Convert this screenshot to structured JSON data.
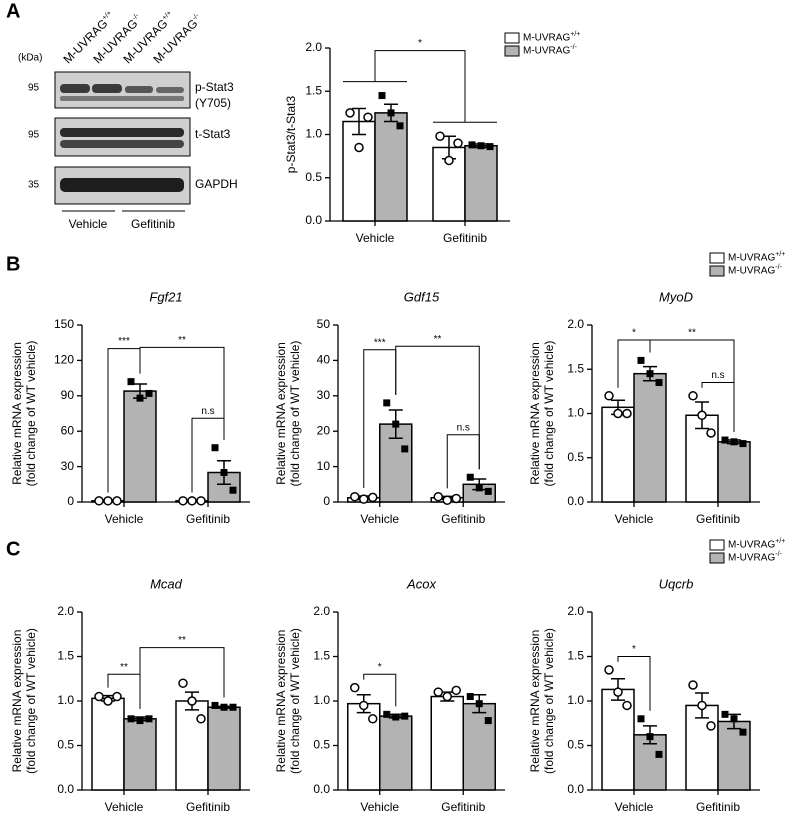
{
  "panels": [
    "A",
    "B",
    "C"
  ],
  "blot": {
    "kda_unit": "(kDa)",
    "lanes": [
      "M-UVRAG+/+",
      "M-UVRAG-/-",
      "M-UVRAG+/+",
      "M-UVRAG-/-"
    ],
    "rows": [
      {
        "kda": 95,
        "label": [
          "p-Stat3",
          "(Y705)"
        ]
      },
      {
        "kda": 95,
        "label": [
          "t-Stat3"
        ]
      },
      {
        "kda": 35,
        "label": [
          "GAPDH"
        ]
      }
    ],
    "groups": [
      "Vehicle",
      "Gefitinib"
    ]
  },
  "chart_data": [
    {
      "type": "bar",
      "ylabel": [
        "p-Stat3/t-Stat3"
      ],
      "categories": [
        "Vehicle",
        "Gefitinib"
      ],
      "ylim": [
        0,
        2
      ],
      "yticks": [
        {
          "value": 0,
          "label": "0.0"
        },
        {
          "value": 0.5,
          "label": "0.5"
        },
        {
          "value": 1,
          "label": "1.0"
        },
        {
          "value": 1.5,
          "label": "1.5"
        },
        {
          "value": 2,
          "label": "2.0"
        }
      ],
      "legend": "top-right",
      "series": [
        {
          "name": "M-UVRAG+/+",
          "color": "#ffffff",
          "values": [
            1.15,
            0.85
          ],
          "errors": [
            0.15,
            0.13
          ],
          "points": [
            [
              1.25,
              0.85,
              1.2
            ],
            [
              0.98,
              0.7,
              0.9
            ]
          ]
        },
        {
          "name": "M-UVRAG-/-",
          "color": "#b3b3b3",
          "values": [
            1.25,
            0.87
          ],
          "errors": [
            0.1,
            0.02
          ],
          "points": [
            [
              1.45,
              1.25,
              1.1
            ],
            [
              0.88,
              0.87,
              0.86
            ]
          ]
        }
      ],
      "significance": [
        {
          "label": "*",
          "from": [
            0
          ],
          "to": [
            1
          ],
          "y": 1.97
        }
      ]
    },
    {
      "type": "bar",
      "title": "Fgf21",
      "ylabel": [
        "Relative mRNA expression",
        "(fold change of WT vehicle)"
      ],
      "categories": [
        "Vehicle",
        "Gefitinib"
      ],
      "ylim": [
        0,
        150
      ],
      "yticks": [
        0,
        30,
        60,
        90,
        120,
        150
      ],
      "series": [
        {
          "name": "M-UVRAG+/+",
          "color": "#ffffff",
          "values": [
            1,
            1
          ],
          "errors": [
            0.3,
            0.3
          ],
          "points": [
            [
              1,
              1,
              1
            ],
            [
              1,
              1,
              1
            ]
          ]
        },
        {
          "name": "M-UVRAG-/-",
          "color": "#b3b3b3",
          "values": [
            94,
            25
          ],
          "errors": [
            6,
            10
          ],
          "points": [
            [
              102,
              88,
              92
            ],
            [
              46,
              25,
              10
            ]
          ]
        }
      ],
      "significance": [
        {
          "label": "***",
          "from": [
            0,
            0
          ],
          "to": [
            0,
            1
          ],
          "y": 130
        },
        {
          "label": "**",
          "from": [
            0,
            1
          ],
          "to": [
            1,
            1
          ],
          "y": 131
        },
        {
          "label": "n.s",
          "from": [
            1,
            0
          ],
          "to": [
            1,
            1
          ],
          "y": 71
        }
      ]
    },
    {
      "type": "bar",
      "title": "Gdf15",
      "ylabel": [
        "Relative mRNA expression",
        "(fold change of WT vehicle)"
      ],
      "categories": [
        "Vehicle",
        "Gefitinib"
      ],
      "ylim": [
        0,
        50
      ],
      "yticks": [
        0,
        10,
        20,
        30,
        40,
        50
      ],
      "series": [
        {
          "name": "M-UVRAG+/+",
          "color": "#ffffff",
          "values": [
            1.2,
            1.2
          ],
          "errors": [
            0.5,
            0.4
          ],
          "points": [
            [
              1.5,
              0.8,
              1.3
            ],
            [
              1.5,
              0.5,
              1
            ]
          ]
        },
        {
          "name": "M-UVRAG-/-",
          "color": "#b3b3b3",
          "values": [
            22,
            5
          ],
          "errors": [
            4,
            1.5
          ],
          "points": [
            [
              28,
              22,
              15
            ],
            [
              7,
              4,
              3
            ]
          ]
        }
      ],
      "significance": [
        {
          "label": "***",
          "from": [
            0,
            0
          ],
          "to": [
            0,
            1
          ],
          "y": 43
        },
        {
          "label": "**",
          "from": [
            0,
            1
          ],
          "to": [
            1,
            1
          ],
          "y": 44
        },
        {
          "label": "n.s",
          "from": [
            1,
            0
          ],
          "to": [
            1,
            1
          ],
          "y": 19
        }
      ]
    },
    {
      "type": "bar",
      "title": "MyoD",
      "ylabel": [
        "Relative mRNA expression",
        "(fold change of WT vehicle)"
      ],
      "categories": [
        "Vehicle",
        "Gefitinib"
      ],
      "ylim": [
        0,
        2
      ],
      "yticks": [
        {
          "value": 0,
          "label": "0.0"
        },
        {
          "value": 0.5,
          "label": "0.5"
        },
        {
          "value": 1,
          "label": "1.0"
        },
        {
          "value": 1.5,
          "label": "1.5"
        },
        {
          "value": 2,
          "label": "2.0"
        }
      ],
      "legend": "top-right",
      "series": [
        {
          "name": "M-UVRAG+/+",
          "color": "#ffffff",
          "values": [
            1.07,
            0.98
          ],
          "errors": [
            0.08,
            0.15
          ],
          "points": [
            [
              1.2,
              1,
              1
            ],
            [
              1.2,
              0.98,
              0.78
            ]
          ]
        },
        {
          "name": "M-UVRAG-/-",
          "color": "#b3b3b3",
          "values": [
            1.45,
            0.68
          ],
          "errors": [
            0.08,
            0.02
          ],
          "points": [
            [
              1.6,
              1.45,
              1.35
            ],
            [
              0.7,
              0.68,
              0.66
            ]
          ]
        }
      ],
      "significance": [
        {
          "label": "*",
          "from": [
            0,
            0
          ],
          "to": [
            0,
            1
          ],
          "y": 1.83
        },
        {
          "label": "**",
          "from": [
            0,
            1
          ],
          "to": [
            1,
            1
          ],
          "y": 1.83
        },
        {
          "label": "n.s",
          "from": [
            1,
            0
          ],
          "to": [
            1,
            1
          ],
          "y": 1.35
        }
      ]
    },
    {
      "type": "bar",
      "title": "Mcad",
      "ylabel": [
        "Relative mRNA expression",
        "(fold change of WT vehicle)"
      ],
      "categories": [
        "Vehicle",
        "Gefitinib"
      ],
      "ylim": [
        0,
        2
      ],
      "yticks": [
        {
          "value": 0,
          "label": "0.0"
        },
        {
          "value": 0.5,
          "label": "0.5"
        },
        {
          "value": 1,
          "label": "1.0"
        },
        {
          "value": 1.5,
          "label": "1.5"
        },
        {
          "value": 2,
          "label": "2.0"
        }
      ],
      "series": [
        {
          "name": "M-UVRAG+/+",
          "color": "#ffffff",
          "values": [
            1.03,
            1
          ],
          "errors": [
            0.03,
            0.1
          ],
          "points": [
            [
              1.05,
              1,
              1.05
            ],
            [
              1.2,
              1,
              0.8
            ]
          ]
        },
        {
          "name": "M-UVRAG-/-",
          "color": "#b3b3b3",
          "values": [
            0.8,
            0.93
          ],
          "errors": [
            0.02,
            0.01
          ],
          "points": [
            [
              0.8,
              0.78,
              0.8
            ],
            [
              0.95,
              0.93,
              0.93
            ]
          ]
        }
      ],
      "significance": [
        {
          "label": "**",
          "from": [
            0,
            0
          ],
          "to": [
            0,
            1
          ],
          "y": 1.3
        },
        {
          "label": "**",
          "from": [
            0,
            1
          ],
          "to": [
            1,
            1
          ],
          "y": 1.6
        }
      ]
    },
    {
      "type": "bar",
      "title": "Acox",
      "ylabel": [
        "Relative mRNA expression",
        "(fold change of WT vehicle)"
      ],
      "categories": [
        "Vehicle",
        "Gefitinib"
      ],
      "ylim": [
        0,
        2
      ],
      "yticks": [
        {
          "value": 0,
          "label": "0.0"
        },
        {
          "value": 0.5,
          "label": "0.5"
        },
        {
          "value": 1,
          "label": "1.0"
        },
        {
          "value": 1.5,
          "label": "1.5"
        },
        {
          "value": 2,
          "label": "2.0"
        }
      ],
      "series": [
        {
          "name": "M-UVRAG+/+",
          "color": "#ffffff",
          "values": [
            0.97,
            1.05
          ],
          "errors": [
            0.1,
            0.05
          ],
          "points": [
            [
              1.15,
              0.95,
              0.8
            ],
            [
              1.1,
              1.05,
              1.12
            ]
          ]
        },
        {
          "name": "M-UVRAG-/-",
          "color": "#b3b3b3",
          "values": [
            0.83,
            0.97
          ],
          "errors": [
            0.02,
            0.1
          ],
          "points": [
            [
              0.85,
              0.82,
              0.83
            ],
            [
              1.05,
              0.97,
              0.78
            ]
          ]
        }
      ],
      "significance": [
        {
          "label": "*",
          "from": [
            0,
            0
          ],
          "to": [
            0,
            1
          ],
          "y": 1.3
        }
      ]
    },
    {
      "type": "bar",
      "title": "Uqcrb",
      "ylabel": [
        "Relative mRNA expression",
        "(fold change of WT vehicle)"
      ],
      "categories": [
        "Vehicle",
        "Gefitinib"
      ],
      "ylim": [
        0,
        2
      ],
      "yticks": [
        {
          "value": 0,
          "label": "0.0"
        },
        {
          "value": 0.5,
          "label": "0.5"
        },
        {
          "value": 1,
          "label": "1.0"
        },
        {
          "value": 1.5,
          "label": "1.5"
        },
        {
          "value": 2,
          "label": "2.0"
        }
      ],
      "legend": "top-right",
      "series": [
        {
          "name": "M-UVRAG+/+",
          "color": "#ffffff",
          "values": [
            1.13,
            0.95
          ],
          "errors": [
            0.12,
            0.14
          ],
          "points": [
            [
              1.35,
              1.1,
              0.95
            ],
            [
              1.18,
              0.95,
              0.72
            ]
          ]
        },
        {
          "name": "M-UVRAG-/-",
          "color": "#b3b3b3",
          "values": [
            0.62,
            0.77
          ],
          "errors": [
            0.1,
            0.08
          ],
          "points": [
            [
              0.8,
              0.6,
              0.4
            ],
            [
              0.85,
              0.8,
              0.65
            ]
          ]
        }
      ],
      "significance": [
        {
          "label": "*",
          "from": [
            0,
            0
          ],
          "to": [
            0,
            1
          ],
          "y": 1.5
        }
      ]
    }
  ]
}
